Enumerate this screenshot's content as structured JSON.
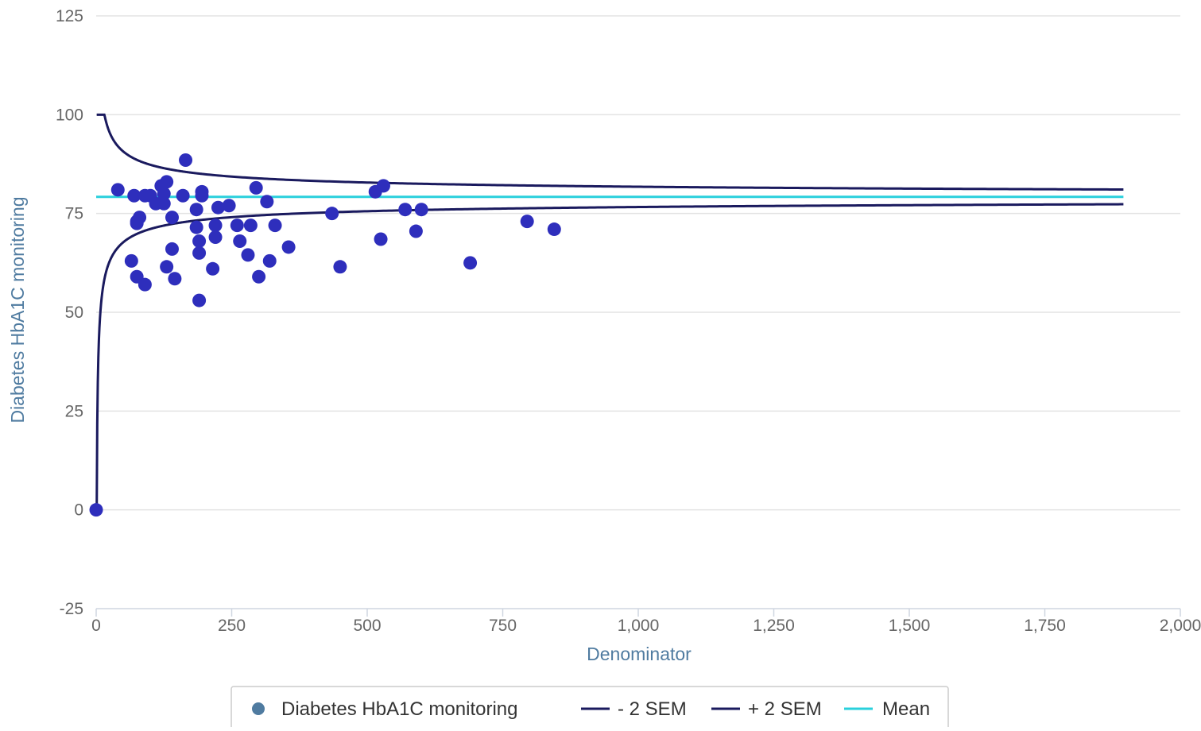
{
  "chart_data": {
    "type": "scatter",
    "title": "",
    "xlabel": "Denominator",
    "ylabel": "Diabetes HbA1C monitoring",
    "xlim": [
      0,
      2000
    ],
    "ylim": [
      -25,
      125
    ],
    "x_ticks": [
      0,
      250,
      500,
      750,
      1000,
      1250,
      1500,
      1750,
      2000
    ],
    "x_tick_labels": [
      "0",
      "250",
      "500",
      "750",
      "1,000",
      "1,250",
      "1,500",
      "1,750",
      "2,000"
    ],
    "y_ticks": [
      -25,
      0,
      25,
      50,
      75,
      100,
      125
    ],
    "y_tick_labels": [
      "-25",
      "0",
      "25",
      "50",
      "75",
      "100",
      "125"
    ],
    "grid": "horizontal",
    "legend_position": "bottom-center",
    "mean": 79.2,
    "series": [
      {
        "name": "Diabetes HbA1C monitoring",
        "kind": "scatter",
        "color": "#2e2ebc",
        "points": [
          [
            0,
            0
          ],
          [
            40,
            81
          ],
          [
            70,
            79.5
          ],
          [
            90,
            79.5
          ],
          [
            100,
            79.5
          ],
          [
            110,
            77.5
          ],
          [
            120,
            82
          ],
          [
            125,
            80
          ],
          [
            130,
            83
          ],
          [
            125,
            77.5
          ],
          [
            160,
            79.5
          ],
          [
            165,
            88.5
          ],
          [
            195,
            80.5
          ],
          [
            195,
            79.5
          ],
          [
            185,
            76
          ],
          [
            225,
            76.5
          ],
          [
            245,
            77
          ],
          [
            295,
            81.5
          ],
          [
            315,
            78
          ],
          [
            75,
            73
          ],
          [
            80,
            74
          ],
          [
            75,
            72.5
          ],
          [
            140,
            74
          ],
          [
            185,
            71.5
          ],
          [
            220,
            72
          ],
          [
            260,
            72
          ],
          [
            285,
            72
          ],
          [
            330,
            72
          ],
          [
            190,
            68
          ],
          [
            220,
            69
          ],
          [
            265,
            68
          ],
          [
            190,
            65
          ],
          [
            140,
            66
          ],
          [
            280,
            64.5
          ],
          [
            320,
            63
          ],
          [
            355,
            66.5
          ],
          [
            65,
            63
          ],
          [
            75,
            59
          ],
          [
            90,
            57
          ],
          [
            130,
            61.5
          ],
          [
            145,
            58.5
          ],
          [
            215,
            61
          ],
          [
            300,
            59
          ],
          [
            190,
            53
          ],
          [
            435,
            75
          ],
          [
            450,
            61.5
          ],
          [
            515,
            80.5
          ],
          [
            530,
            82
          ],
          [
            525,
            68.5
          ],
          [
            570,
            76
          ],
          [
            600,
            76
          ],
          [
            590,
            70.5
          ],
          [
            690,
            62.5
          ],
          [
            795,
            73
          ],
          [
            845,
            71
          ]
        ]
      },
      {
        "name": "- 2 SEM",
        "kind": "line",
        "color": "#1a1a5e"
      },
      {
        "name": "+ 2 SEM",
        "kind": "line",
        "color": "#1a1a5e"
      },
      {
        "name": "Mean",
        "kind": "line",
        "color": "#2ad0dc"
      }
    ]
  }
}
